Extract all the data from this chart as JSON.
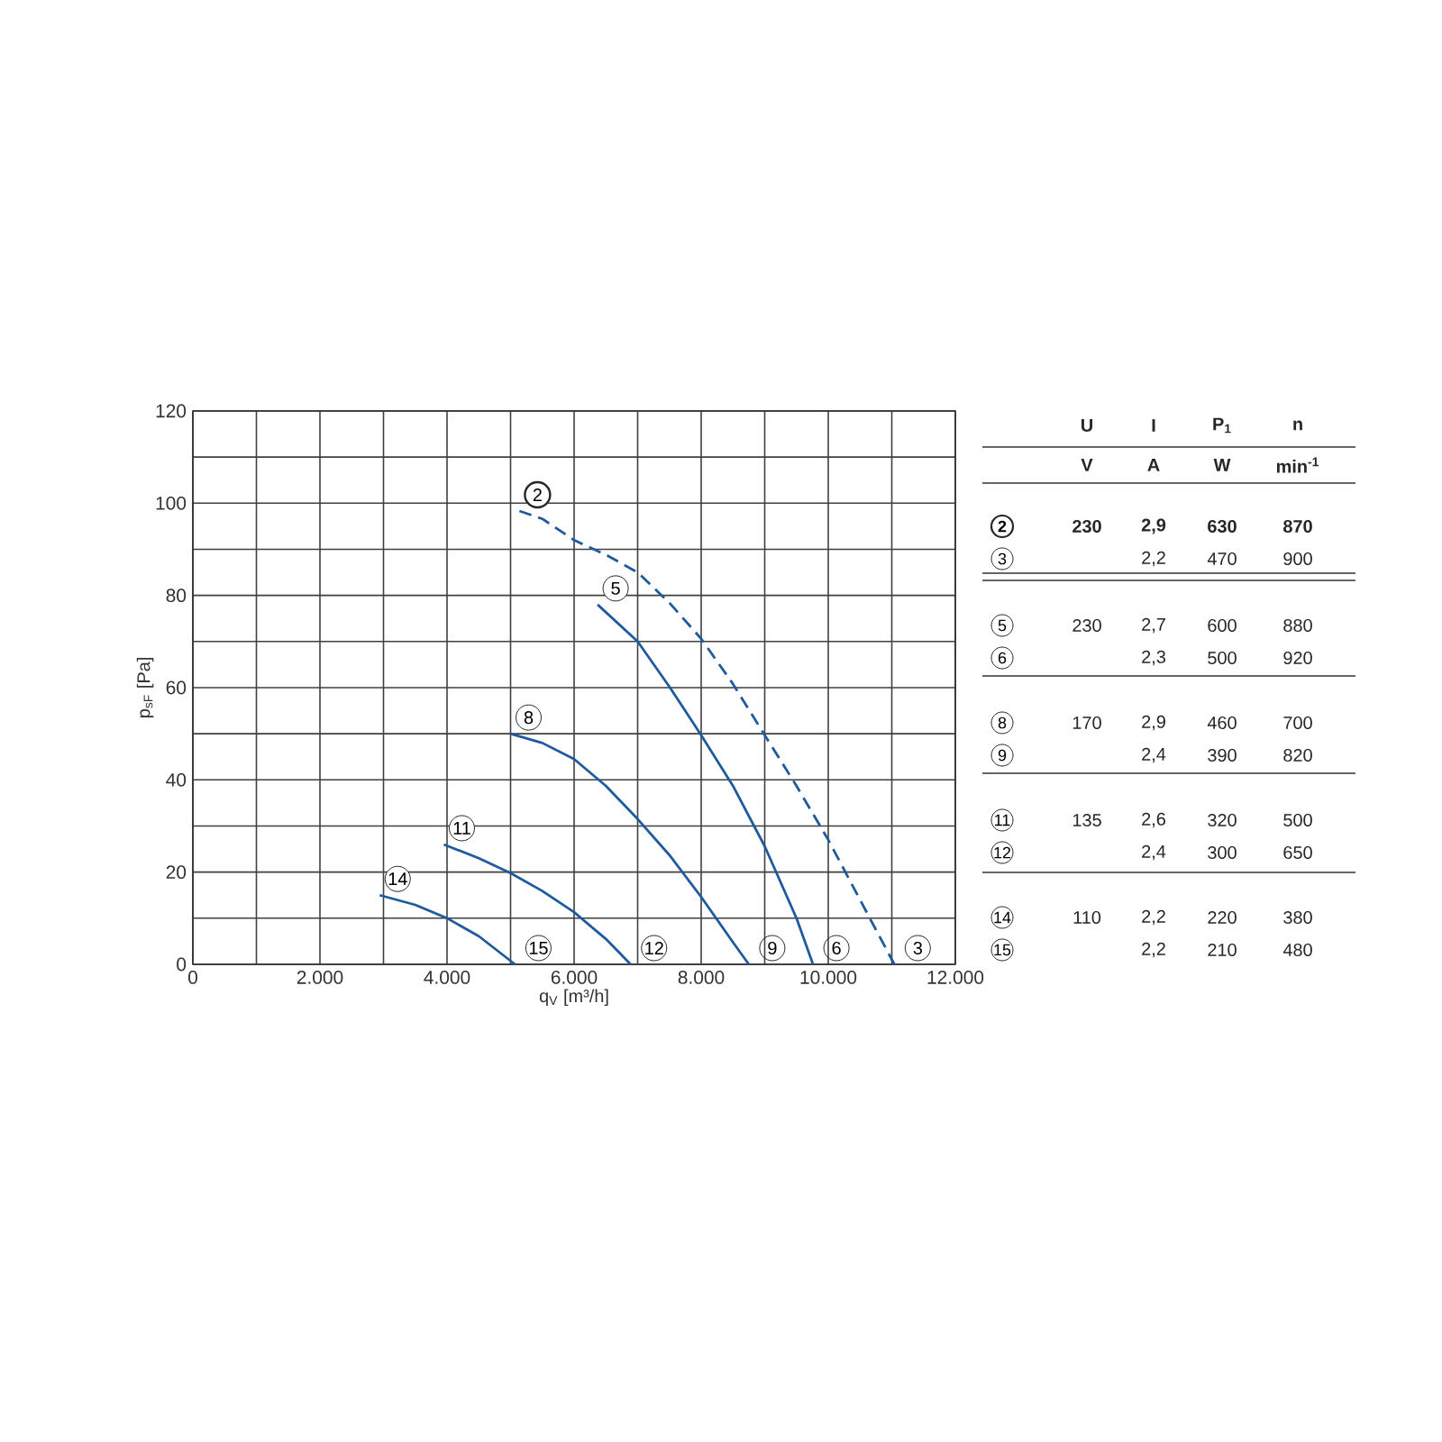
{
  "chart_data": {
    "type": "line",
    "xlabel": "q$_{V}$ [m³/h]",
    "ylabel": "p$_{sF}$ [Pa]",
    "xlim": [
      0,
      12000
    ],
    "ylim": [
      0,
      120
    ],
    "xticks": [
      0,
      {
        "value": 1000,
        "label": null
      },
      {
        "value": 2000,
        "label": "2.000"
      },
      {
        "value": 3000,
        "label": null
      },
      {
        "value": 4000,
        "label": "4.000"
      },
      {
        "value": 5000,
        "label": null
      },
      {
        "value": 6000,
        "label": "6.000"
      },
      {
        "value": 7000,
        "label": null
      },
      {
        "value": 8000,
        "label": "8.000"
      },
      {
        "value": 9000,
        "label": null
      },
      {
        "value": 10000,
        "label": "10.000"
      },
      {
        "value": 11000,
        "label": null
      },
      {
        "value": 12000,
        "label": "12.000"
      }
    ],
    "yticks": [
      0,
      {
        "value": 10,
        "label": null
      },
      20,
      {
        "value": 30,
        "label": null
      },
      40,
      {
        "value": 50,
        "label": null
      },
      60,
      {
        "value": 70,
        "label": null
      },
      80,
      {
        "value": 90,
        "label": null
      },
      100,
      {
        "value": 110,
        "label": null
      },
      120
    ],
    "grid": true,
    "legend": false,
    "marker": "none",
    "series": [
      {
        "name": "2",
        "color": "#1f5a9e",
        "line_style": "dashed",
        "x": [
          5140,
          5500,
          6000,
          6500,
          7000,
          7500,
          8000,
          8500,
          9000,
          9500,
          10000,
          10500,
          11040
        ],
        "values": [
          98.3,
          96.6,
          92,
          88.8,
          85,
          78.4,
          70.6,
          60.8,
          49.7,
          38.7,
          27,
          14,
          0
        ]
      },
      {
        "name": "5",
        "color": "#1f5a9e",
        "line_style": "solid",
        "x": [
          6370,
          7000,
          7500,
          8000,
          8500,
          9000,
          9500,
          9760
        ],
        "values": [
          78,
          70,
          60.2,
          49.7,
          38.7,
          25.6,
          10,
          0
        ]
      },
      {
        "name": "8",
        "color": "#1f5a9e",
        "line_style": "solid",
        "x": [
          5000,
          5500,
          6000,
          6500,
          7000,
          7500,
          8000,
          8500,
          8750
        ],
        "values": [
          50,
          48,
          44.5,
          38.7,
          31.5,
          23.7,
          14.6,
          4.8,
          0
        ]
      },
      {
        "name": "11",
        "color": "#1f5a9e",
        "line_style": "solid",
        "x": [
          3950,
          4500,
          5000,
          5500,
          6000,
          6500,
          6890
        ],
        "values": [
          26,
          23,
          19.8,
          15.9,
          11.3,
          5.5,
          0
        ]
      },
      {
        "name": "14",
        "color": "#1f5a9e",
        "line_style": "solid",
        "x": [
          2940,
          3500,
          4000,
          4500,
          5070
        ],
        "values": [
          15,
          12.9,
          10,
          6.1,
          0
        ]
      }
    ],
    "annotations": [
      {
        "text": "3",
        "x": 11040,
        "y": 0
      },
      {
        "text": "6",
        "x": 9760,
        "y": 0
      },
      {
        "text": "9",
        "x": 8750,
        "y": 0
      },
      {
        "text": "12",
        "x": 6890,
        "y": 0
      },
      {
        "text": "15",
        "x": 5070,
        "y": 0
      },
      "U",
      "I",
      "P$_{1}$",
      "n",
      "V",
      "A",
      "W",
      "min$^{-1}$",
      "2",
      "230",
      "2,9",
      "630",
      "870",
      "3",
      "2,2",
      "470",
      "900",
      "5",
      "230",
      "2,7",
      "600",
      "880",
      "6",
      "2,3",
      "500",
      "920",
      "8",
      "170",
      "2,9",
      "460",
      "700",
      "9",
      "2,4",
      "390",
      "820",
      "11",
      "135",
      "2,6",
      "320",
      "500",
      "12",
      "2,4",
      "300",
      "650",
      "14",
      "110",
      "2,2",
      "220",
      "380",
      "15",
      "2,2",
      "210",
      "480"
    ]
  }
}
